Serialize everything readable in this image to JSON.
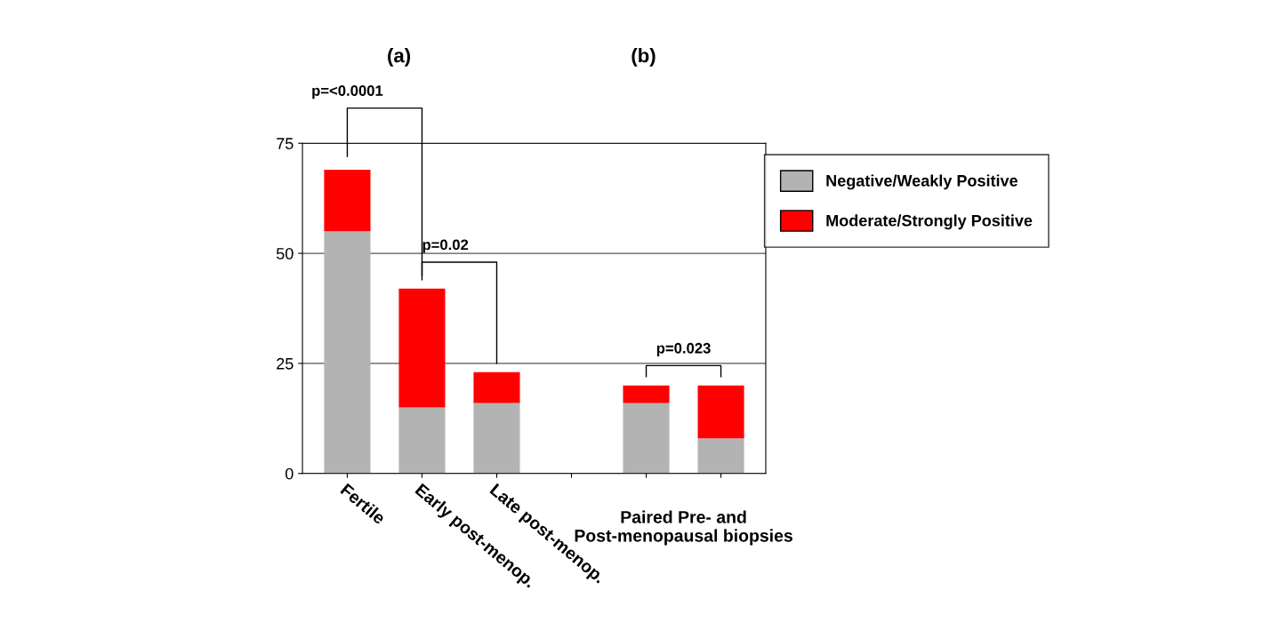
{
  "chart_data": {
    "type": "bar",
    "stacked": true,
    "categories": [
      "Fertile",
      "Early post-menop.",
      "Late post-menop.",
      null,
      null,
      null
    ],
    "series": [
      {
        "name": "Negative/Weakly Positive",
        "color": "#b3b3b3",
        "values": [
          55,
          15,
          16,
          null,
          16,
          8
        ]
      },
      {
        "name": "Moderate/Strongly Positive",
        "color": "#ff0000",
        "values": [
          14,
          27,
          7,
          null,
          4,
          12
        ]
      }
    ],
    "ylim": [
      0,
      75
    ],
    "yticks": [
      0,
      25,
      50,
      75
    ],
    "grid": "y",
    "legend": "top right",
    "annotations": [
      "(a)",
      "(b)",
      "Paired Pre- and Post-menopausal biopsies",
      "p=<0.0001",
      "p=0.02",
      "p=0.023"
    ]
  }
}
